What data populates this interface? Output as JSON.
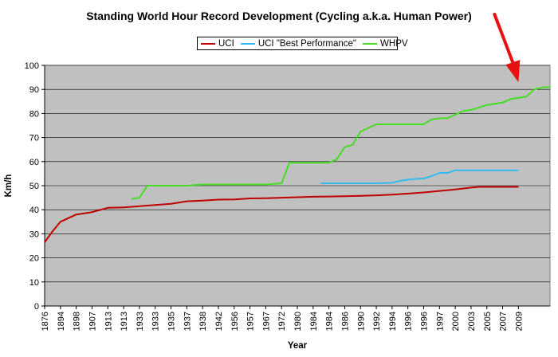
{
  "chart_data": {
    "type": "line",
    "title": "Standing World Hour Record Development (Cycling a.k.a. Human Power)",
    "xlabel": "Year",
    "ylabel": "Km/h",
    "ylim": [
      0,
      100
    ],
    "yticks": [
      0,
      10,
      20,
      30,
      40,
      50,
      60,
      70,
      80,
      90,
      100
    ],
    "x_tick_labels": [
      "1876",
      "1894",
      "1898",
      "1907",
      "1913",
      "1913",
      "1933",
      "1933",
      "1935",
      "1937",
      "1938",
      "1942",
      "1956",
      "1957",
      "1967",
      "1972",
      "1980",
      "1984",
      "1984",
      "1986",
      "1990",
      "1992",
      "1994",
      "1996",
      "1996",
      "1997",
      "2000",
      "2003",
      "2005",
      "2007",
      "2009"
    ],
    "grid": true,
    "legend_position": "top-center",
    "series": [
      {
        "name": "UCI",
        "color": "#c00000",
        "values": [
          [
            0,
            26.5
          ],
          [
            0.5,
            31
          ],
          [
            1,
            35
          ],
          [
            2,
            38
          ],
          [
            3,
            39
          ],
          [
            4,
            40.8
          ],
          [
            5,
            41
          ],
          [
            6,
            41.5
          ],
          [
            7,
            42
          ],
          [
            8,
            42.5
          ],
          [
            9,
            43.5
          ],
          [
            10,
            43.8
          ],
          [
            11,
            44.2
          ],
          [
            12,
            44.3
          ],
          [
            13,
            44.7
          ],
          [
            14,
            44.8
          ],
          [
            15,
            45
          ],
          [
            16,
            45.2
          ],
          [
            17,
            45.4
          ],
          [
            18,
            45.5
          ],
          [
            19,
            45.6
          ],
          [
            20,
            45.8
          ],
          [
            21,
            46
          ],
          [
            22,
            46.3
          ],
          [
            23,
            46.7
          ],
          [
            24,
            47.2
          ],
          [
            25,
            47.8
          ],
          [
            26,
            48.4
          ],
          [
            27,
            49.2
          ],
          [
            27.5,
            49.5
          ],
          [
            30,
            49.5
          ]
        ]
      },
      {
        "name": "UCI \"Best Performance\"",
        "color": "#33bbee",
        "values": [
          [
            17.5,
            51
          ],
          [
            20,
            51
          ],
          [
            21,
            51
          ],
          [
            22,
            51.2
          ],
          [
            22.5,
            52
          ],
          [
            23,
            52.5
          ],
          [
            24,
            53
          ],
          [
            24.5,
            54
          ],
          [
            25,
            55.3
          ],
          [
            25.5,
            55.3
          ],
          [
            26,
            56.4
          ],
          [
            27,
            56.4
          ],
          [
            30,
            56.4
          ]
        ]
      },
      {
        "name": "WHPV",
        "color": "#44dd22",
        "values": [
          [
            5.5,
            44.5
          ],
          [
            6,
            45
          ],
          [
            6.5,
            50
          ],
          [
            9,
            50
          ],
          [
            10,
            50.5
          ],
          [
            14,
            50.5
          ],
          [
            15,
            51
          ],
          [
            15.5,
            59.5
          ],
          [
            16,
            59.5
          ],
          [
            17,
            59.5
          ],
          [
            18,
            59.5
          ],
          [
            18.5,
            61
          ],
          [
            19,
            66
          ],
          [
            19.5,
            67
          ],
          [
            20,
            72.5
          ],
          [
            20.5,
            74
          ],
          [
            21,
            75.5
          ],
          [
            22,
            75.5
          ],
          [
            23,
            75.5
          ],
          [
            24,
            75.5
          ],
          [
            24.5,
            77.5
          ],
          [
            25,
            78
          ],
          [
            25.5,
            78
          ],
          [
            26,
            79.5
          ],
          [
            26.5,
            81
          ],
          [
            27,
            81.5
          ],
          [
            27.5,
            82.5
          ],
          [
            28,
            83.5
          ],
          [
            28.5,
            84
          ],
          [
            29,
            84.5
          ],
          [
            29.5,
            86
          ],
          [
            30,
            86.5
          ],
          [
            30.5,
            87
          ],
          [
            31,
            90
          ],
          [
            31.5,
            90.8
          ],
          [
            32,
            91
          ]
        ]
      }
    ],
    "annotation": {
      "color": "#e81010",
      "target_x": 30,
      "target_y": 91
    }
  }
}
